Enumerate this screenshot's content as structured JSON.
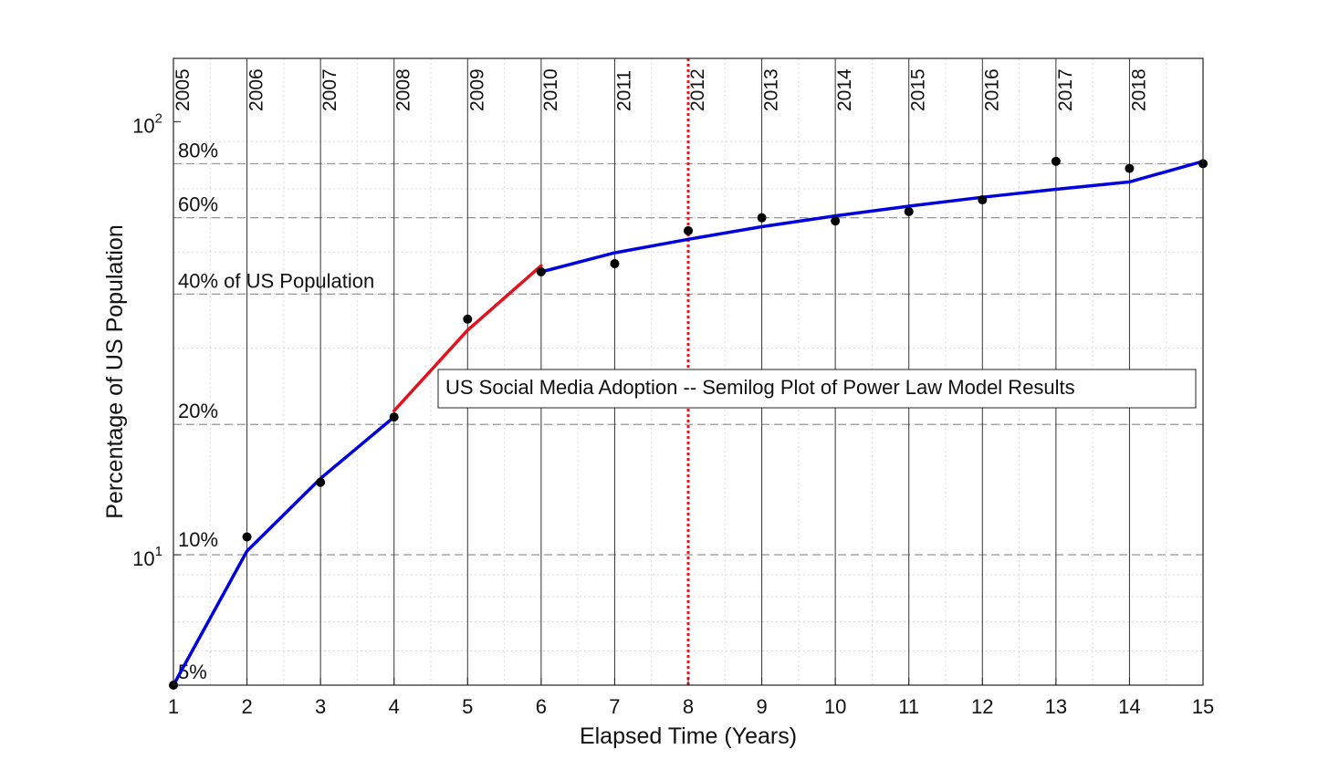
{
  "chart_data": {
    "type": "line",
    "title": "US Social Media Adoption -- Semilog Plot of Power Law Model Results",
    "xlabel": "Elapsed Time (Years)",
    "ylabel": "Percentage of US Population",
    "xlim": [
      1,
      15
    ],
    "ylim": [
      5,
      140
    ],
    "yscale": "log",
    "grid": true,
    "x_ticks": [
      1,
      2,
      3,
      4,
      5,
      6,
      7,
      8,
      9,
      10,
      11,
      12,
      13,
      14,
      15
    ],
    "y_ticks": [
      {
        "value": 10,
        "base": "10",
        "exp": "1"
      },
      {
        "value": 100,
        "base": "10",
        "exp": "2"
      }
    ],
    "year_labels": [
      "2005",
      "2006",
      "2007",
      "2008",
      "2009",
      "2010",
      "2011",
      "2012",
      "2013",
      "2014",
      "2015",
      "2016",
      "2017",
      "2018"
    ],
    "reference_lines": [
      {
        "value": 80,
        "label": "80%"
      },
      {
        "value": 60,
        "label": "60%"
      },
      {
        "value": 40,
        "label": "40% of US Population"
      },
      {
        "value": 20,
        "label": "20%"
      },
      {
        "value": 10,
        "label": "10%"
      },
      {
        "value": 5,
        "label": "5%"
      }
    ],
    "vertical_marker": {
      "x": 8,
      "color": "#e8171d",
      "style": "dotted"
    },
    "scatter": {
      "name": "",
      "color": "#000000",
      "x": [
        1,
        2,
        3,
        4,
        5,
        6,
        7,
        8,
        9,
        10,
        11,
        12,
        13,
        14,
        15
      ],
      "y": [
        5,
        11,
        14.7,
        20.8,
        35,
        45,
        47,
        56,
        60,
        59,
        62,
        66,
        81,
        78,
        80
      ]
    },
    "series": [
      {
        "name": "",
        "color": "#0000dd",
        "x": [
          1,
          2,
          3,
          4
        ],
        "y": [
          5,
          10.2,
          15,
          20.8
        ]
      },
      {
        "name": "",
        "color": "#e3121d",
        "x": [
          4,
          5,
          6
        ],
        "y": [
          21.5,
          33,
          46.5
        ]
      },
      {
        "name": "",
        "color": "#0000dd",
        "x": [
          6,
          7,
          8,
          9,
          10,
          11,
          12,
          13,
          14,
          15
        ],
        "y": [
          45,
          49.8,
          53.5,
          57.2,
          60.6,
          63.8,
          66.9,
          69.8,
          72.6,
          81
        ]
      }
    ]
  }
}
